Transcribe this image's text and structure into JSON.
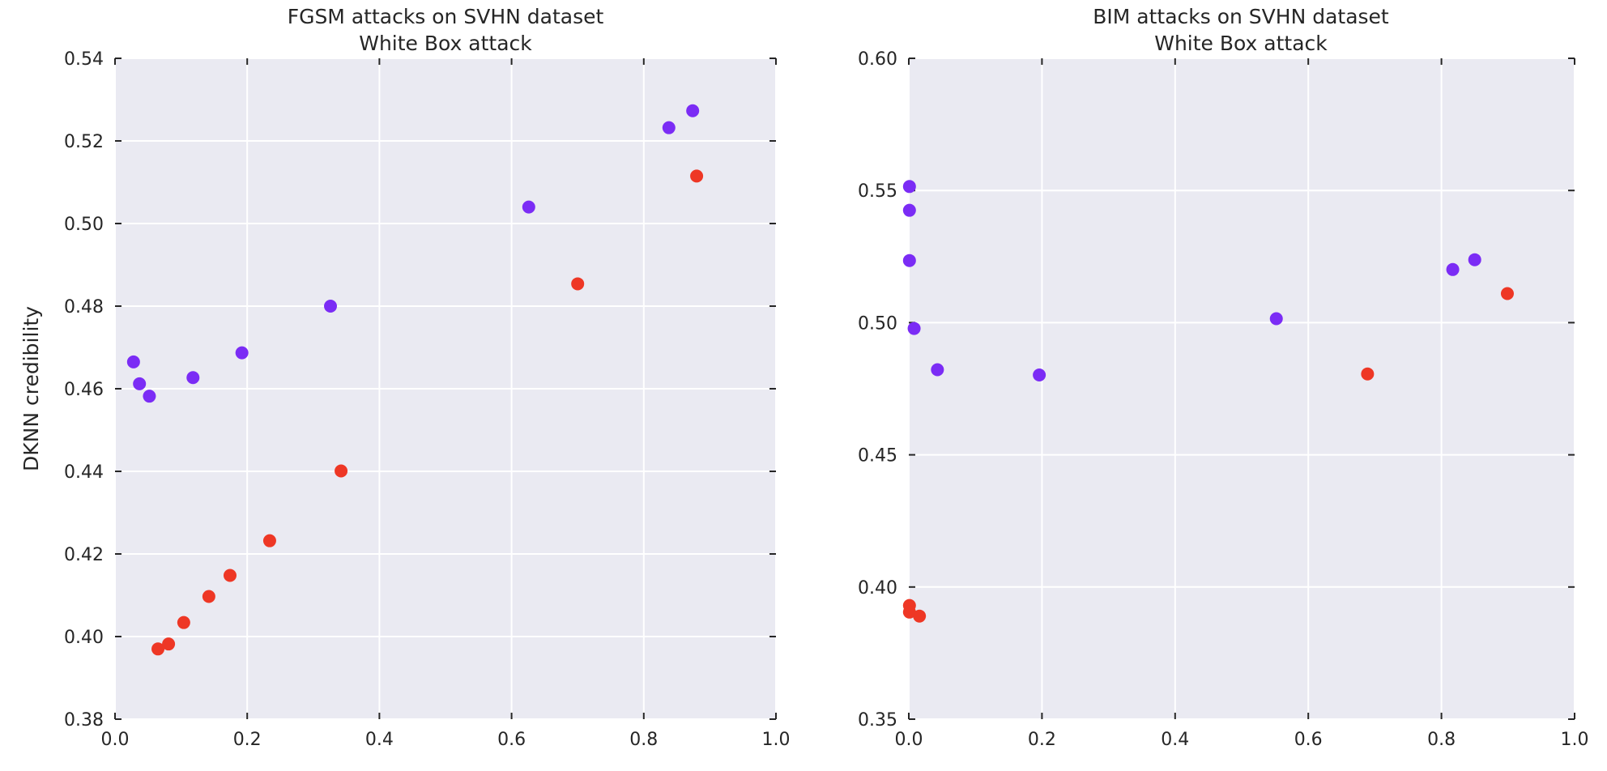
{
  "colors": {
    "panel_background": "#eaeaf2",
    "gridline": "#ffffff",
    "tick_mark": "#262626",
    "series_purple": "#7b2cf5",
    "series_red": "#ee3725"
  },
  "chart_data": [
    {
      "type": "scatter",
      "title": "FGSM attacks on SVHN dataset",
      "subtitle": "White Box attack",
      "xlabel": "",
      "ylabel": "DKNN credibility",
      "xlim": [
        0.0,
        1.0
      ],
      "ylim": [
        0.38,
        0.54
      ],
      "xticks": [
        "0.0",
        "0.2",
        "0.4",
        "0.6",
        "0.8",
        "1.0"
      ],
      "yticks": [
        "0.38",
        "0.40",
        "0.42",
        "0.44",
        "0.46",
        "0.48",
        "0.50",
        "0.52",
        "0.54"
      ],
      "grid": true,
      "series": [
        {
          "color": "#7b2cf5",
          "x": [
            0.028,
            0.037,
            0.052,
            0.118,
            0.192,
            0.326,
            0.626,
            0.838,
            0.874
          ],
          "y": [
            0.4665,
            0.4612,
            0.4582,
            0.4627,
            0.4687,
            0.48,
            0.504,
            0.5232,
            0.5273
          ]
        },
        {
          "color": "#ee3725",
          "x": [
            0.065,
            0.081,
            0.104,
            0.142,
            0.174,
            0.234,
            0.342,
            0.7,
            0.88
          ],
          "y": [
            0.397,
            0.3982,
            0.4034,
            0.4097,
            0.4148,
            0.4232,
            0.4401,
            0.4854,
            0.5115
          ]
        }
      ]
    },
    {
      "type": "scatter",
      "title": "BIM attacks on SVHN dataset",
      "subtitle": "White Box attack",
      "xlabel": "",
      "ylabel": "",
      "xlim": [
        0.0,
        1.0
      ],
      "ylim": [
        0.35,
        0.6
      ],
      "xticks": [
        "0.0",
        "0.2",
        "0.4",
        "0.6",
        "0.8",
        "1.0"
      ],
      "yticks": [
        "0.35",
        "0.40",
        "0.45",
        "0.50",
        "0.55",
        "0.60"
      ],
      "grid": true,
      "series": [
        {
          "color": "#7b2cf5",
          "x": [
            0.001,
            0.001,
            0.001,
            0.008,
            0.043,
            0.196,
            0.552,
            0.817,
            0.85
          ],
          "y": [
            0.5515,
            0.5425,
            0.5235,
            0.4978,
            0.4822,
            0.4802,
            0.5015,
            0.5201,
            0.5238
          ]
        },
        {
          "color": "#ee3725",
          "x": [
            0.001,
            0.001,
            0.016,
            0.689,
            0.899
          ],
          "y": [
            0.393,
            0.3905,
            0.389,
            0.4806,
            0.511
          ]
        }
      ]
    }
  ]
}
